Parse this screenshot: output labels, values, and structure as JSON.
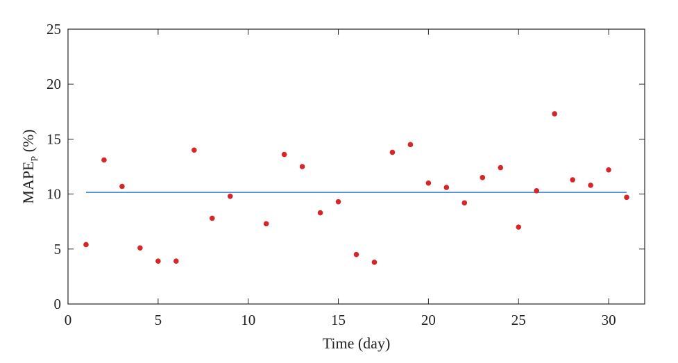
{
  "chart_data": {
    "type": "scatter",
    "xlabel": "Time (day)",
    "ylabel": {
      "main": "MAPE",
      "subscript": "P",
      "suffix": " (%)"
    },
    "xlim": [
      0,
      32
    ],
    "ylim": [
      0,
      25
    ],
    "xticks": [
      0,
      5,
      10,
      15,
      20,
      25,
      30
    ],
    "yticks": [
      0,
      5,
      10,
      15,
      20,
      25
    ],
    "grid": false,
    "series": [
      {
        "type": "scatter",
        "color": "#d62728",
        "x": [
          1,
          2,
          3,
          4,
          5,
          6,
          7,
          8,
          9,
          11,
          12,
          13,
          14,
          15,
          16,
          17,
          18,
          19,
          20,
          21,
          22,
          23,
          24,
          25,
          26,
          27,
          28,
          29,
          30,
          31
        ],
        "y": [
          5.4,
          13.1,
          10.7,
          5.1,
          3.9,
          3.9,
          14.0,
          7.8,
          9.8,
          7.3,
          13.6,
          12.5,
          8.3,
          9.3,
          4.5,
          3.8,
          13.8,
          14.5,
          11.0,
          10.6,
          9.2,
          11.5,
          12.4,
          7.0,
          10.3,
          17.3,
          11.3,
          10.8,
          12.2,
          9.7
        ]
      },
      {
        "type": "line",
        "color": "#4a90d9",
        "x": [
          1,
          31
        ],
        "y": [
          10.15,
          10.15
        ]
      }
    ]
  }
}
